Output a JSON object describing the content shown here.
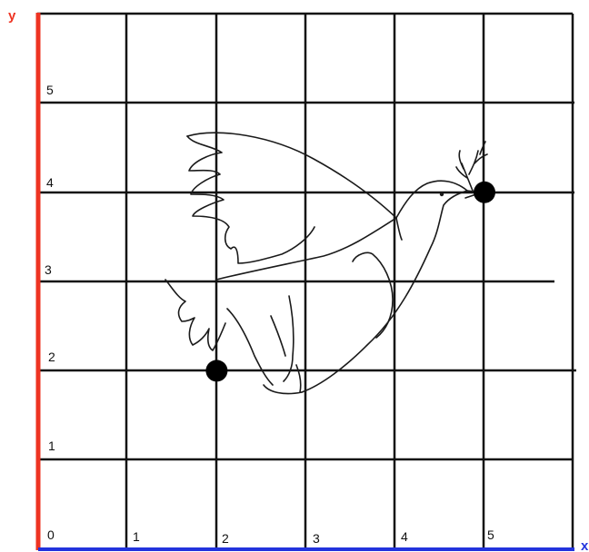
{
  "diagram": {
    "axis_y_label": "y",
    "axis_x_label": "x",
    "x_ticks": [
      "0",
      "1",
      "2",
      "3",
      "4",
      "5"
    ],
    "y_ticks": [
      "1",
      "2",
      "3",
      "4",
      "5"
    ],
    "x_range": [
      0,
      6
    ],
    "y_range": [
      0,
      6
    ],
    "grid": true,
    "colors": {
      "y_axis": "#ee3322",
      "x_axis": "#2233dd",
      "grid": "#111111",
      "points": "#000000"
    },
    "figure": "dove-drawing",
    "points": [
      {
        "x": 2,
        "y": 2
      },
      {
        "x": 5,
        "y": 4
      }
    ]
  }
}
